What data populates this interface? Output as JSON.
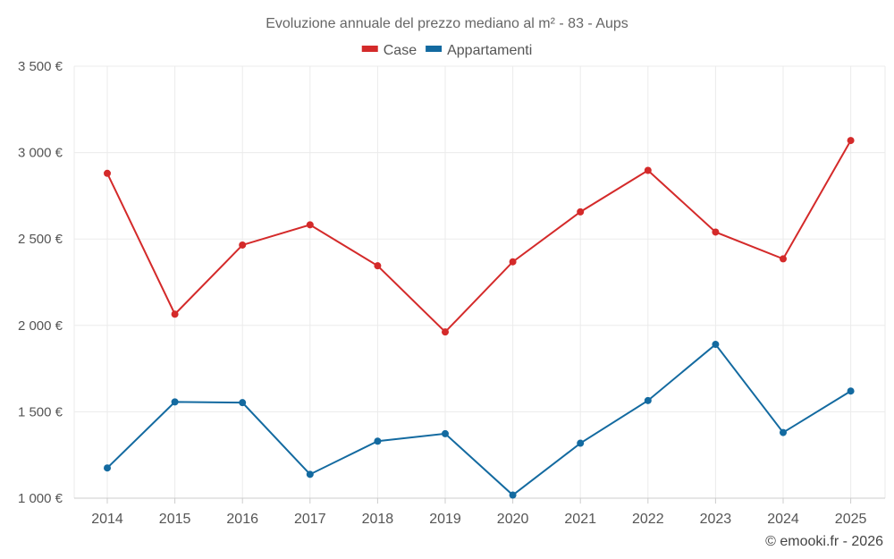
{
  "chart_data": {
    "type": "line",
    "title": "Evoluzione annuale del prezzo mediano al m² - 83 - Aups",
    "categories": [
      "2014",
      "2015",
      "2016",
      "2017",
      "2018",
      "2019",
      "2020",
      "2021",
      "2022",
      "2023",
      "2024",
      "2025"
    ],
    "series": [
      {
        "name": "Case",
        "color": "#d42a2a",
        "values": [
          2880,
          2065,
          2465,
          2582,
          2345,
          1962,
          2368,
          2657,
          2897,
          2540,
          2385,
          3070
        ]
      },
      {
        "name": "Appartamenti",
        "color": "#136aa0",
        "values": [
          1175,
          1557,
          1553,
          1138,
          1330,
          1373,
          1018,
          1318,
          1565,
          1890,
          1380,
          1620
        ]
      }
    ],
    "ylim": [
      1000,
      3500
    ],
    "yticks": [
      1000,
      1500,
      2000,
      2500,
      3000,
      3500
    ],
    "ytick_labels": [
      "1 000 €",
      "1 500 €",
      "2 000 €",
      "2 500 €",
      "3 000 €",
      "3 500 €"
    ],
    "xlabel": "",
    "ylabel": "",
    "grid": true,
    "legend_position": "top-center"
  },
  "credit": "© emooki.fr - 2026"
}
